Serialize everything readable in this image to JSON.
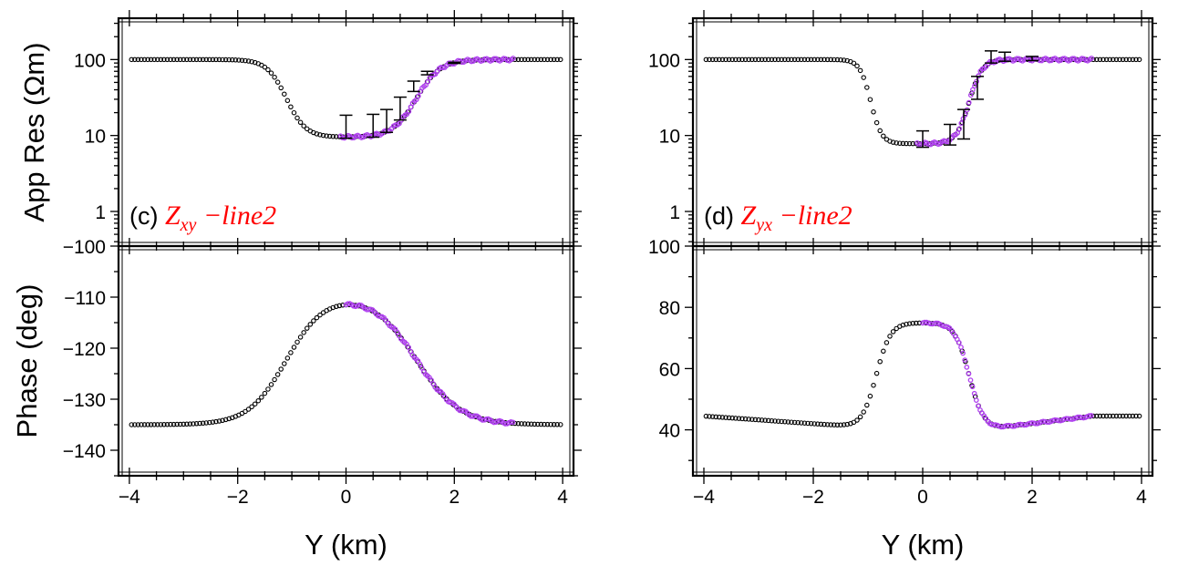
{
  "chart_data": [
    {
      "type": "scatter",
      "panel_id": "c",
      "label": {
        "letter": "(c)",
        "symbol": "Z",
        "sub": "xy",
        "suffix": " −line2",
        "color": "#ff0000"
      },
      "xlabel": "Y (km)",
      "xlim": [
        -4.2,
        4.2
      ],
      "x_ticks": [
        "−4",
        "−2",
        "0",
        "2",
        "4"
      ],
      "x_tick_values": [
        -4,
        -2,
        0,
        2,
        4
      ],
      "top": {
        "ylabel": "App Res (Ωm)",
        "scale": "log",
        "ylim": [
          0.35,
          350
        ],
        "y_ticks": [
          "1",
          "10",
          "100"
        ],
        "y_tick_values": [
          1,
          10,
          100
        ],
        "corner_label": "−100",
        "model_params": {
          "left": 100,
          "min": 9.5,
          "right": 100,
          "x1": -1.1,
          "w1": 0.18,
          "x2": 1.3,
          "w2": 0.22
        },
        "observed_range": [
          -0.1,
          3.1
        ],
        "errorbars": [
          {
            "x": 0.0,
            "y": 9.2,
            "lo": 9.2,
            "hi": 18.5
          },
          {
            "x": 0.5,
            "y": 9.5,
            "lo": 9.5,
            "hi": 19.0
          },
          {
            "x": 0.75,
            "y": 11.0,
            "lo": 11.0,
            "hi": 22.0
          },
          {
            "x": 1.0,
            "y": 16.0,
            "lo": 16.0,
            "hi": 32.0
          },
          {
            "x": 1.25,
            "y": 38.0,
            "lo": 38.0,
            "hi": 52.0
          },
          {
            "x": 1.5,
            "y": 63.0,
            "lo": 63.0,
            "hi": 70.0
          },
          {
            "x": 2.0,
            "y": 89.0,
            "lo": 89.0,
            "hi": 92.0
          }
        ]
      },
      "bottom": {
        "ylabel": "Phase (deg)",
        "scale": "linear",
        "ylim": [
          -145,
          -100
        ],
        "y_ticks": [
          "−100",
          "−110",
          "−120",
          "−130",
          "−140"
        ],
        "y_tick_values": [
          -100,
          -110,
          -120,
          -130,
          -140
        ],
        "model_params": {
          "left": -135,
          "peak": -109.5,
          "right": -135,
          "x1": -1.1,
          "w1": 0.35,
          "x2": 1.3,
          "w2": 0.4
        },
        "observed_range": [
          0.0,
          3.1
        ]
      }
    },
    {
      "type": "scatter",
      "panel_id": "d",
      "label": {
        "letter": "(d)",
        "symbol": "Z",
        "sub": "yx",
        "suffix": " −line2",
        "color": "#ff0000"
      },
      "xlabel": "Y (km)",
      "xlim": [
        -4.2,
        4.2
      ],
      "x_ticks": [
        "−4",
        "−2",
        "0",
        "2",
        "4"
      ],
      "x_tick_values": [
        -4,
        -2,
        0,
        2,
        4
      ],
      "top": {
        "ylabel": "",
        "scale": "log",
        "ylim": [
          0.35,
          350
        ],
        "y_ticks": [
          "1",
          "10",
          "100"
        ],
        "y_tick_values": [
          1,
          10,
          100
        ],
        "corner_label": "100",
        "model_params": {
          "left": 100,
          "min": 7.8,
          "right": 100,
          "x1": -0.95,
          "w1": 0.1,
          "x2": 0.85,
          "w2": 0.12
        },
        "observed_range": [
          -0.1,
          3.1
        ],
        "errorbars": [
          {
            "x": 0.0,
            "y": 8.0,
            "lo": 7.0,
            "hi": 11.5
          },
          {
            "x": 0.5,
            "y": 9.0,
            "lo": 7.5,
            "hi": 14.0
          },
          {
            "x": 0.75,
            "y": 13.0,
            "lo": 9.0,
            "hi": 22.0
          },
          {
            "x": 1.0,
            "y": 45.0,
            "lo": 30.0,
            "hi": 60.0
          },
          {
            "x": 1.25,
            "y": 100.0,
            "lo": 90.0,
            "hi": 130.0
          },
          {
            "x": 1.5,
            "y": 105.0,
            "lo": 95.0,
            "hi": 125.0
          },
          {
            "x": 2.0,
            "y": 103.0,
            "lo": 97.0,
            "hi": 110.0
          }
        ]
      },
      "bottom": {
        "ylabel": "",
        "scale": "linear",
        "ylim": [
          25,
          100
        ],
        "y_ticks": [
          "100",
          "80",
          "60",
          "40"
        ],
        "y_tick_values": [
          100,
          80,
          60,
          40
        ],
        "model_params": {
          "left_start": 44.5,
          "left_end": 41,
          "peak": 75,
          "right_start": 40.5,
          "right_end": 44.5,
          "x1": -0.85,
          "w1": 0.13,
          "x2": 0.85,
          "w2": 0.13
        },
        "observed_range": [
          0.0,
          3.1
        ]
      }
    }
  ],
  "colors": {
    "model": "#000000",
    "observed": "#b040f0",
    "label": "#ff0000",
    "axis": "#000000"
  }
}
